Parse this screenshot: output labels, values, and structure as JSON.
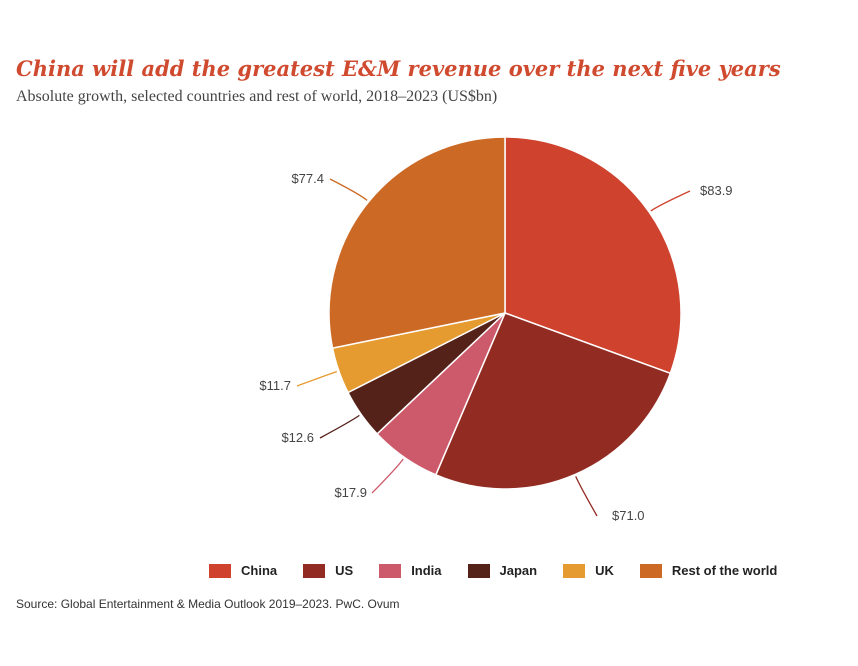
{
  "header": {
    "title": "China will add the greatest E&M revenue over the next five years",
    "subtitle": "Absolute growth, selected countries and rest of world, 2018–2023 (US$bn)"
  },
  "source": "Source: Global Entertainment & Media Outlook 2019–2023. PwC. Ovum",
  "chart_data": {
    "type": "pie",
    "title": "China will add the greatest E&M revenue over the next five years",
    "subtitle": "Absolute growth, selected countries and rest of world, 2018–2023 (US$bn)",
    "unit": "US$bn",
    "legend_position": "bottom",
    "slices": [
      {
        "name": "China",
        "value": 83.9,
        "label": "$83.9",
        "color": "#cf422e"
      },
      {
        "name": "US",
        "value": 71.0,
        "label": "$71.0",
        "color": "#922b22"
      },
      {
        "name": "India",
        "value": 17.9,
        "label": "$17.9",
        "color": "#cd5a6a"
      },
      {
        "name": "Japan",
        "value": 12.6,
        "label": "$12.6",
        "color": "#55221a"
      },
      {
        "name": "UK",
        "value": 11.7,
        "label": "$11.7",
        "color": "#e59b2f"
      },
      {
        "name": "Rest of the world",
        "value": 77.4,
        "label": "$77.4",
        "color": "#cc6a25"
      }
    ]
  }
}
